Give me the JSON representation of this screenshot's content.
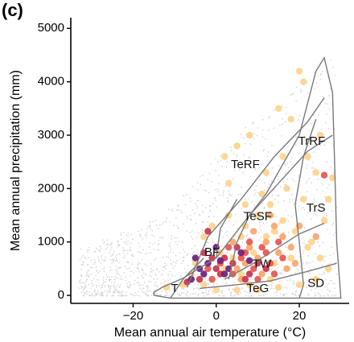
{
  "panel_label": "(c)",
  "chart_data": {
    "type": "scatter",
    "title": "",
    "xlabel": "Mean annual air temperature (°C)",
    "ylabel": "Mean annual precipitation (mm)",
    "xlim": [
      -35,
      32
    ],
    "ylim": [
      -150,
      5200
    ],
    "xticks": [
      -20,
      0,
      20
    ],
    "xtick_labels": [
      "−20",
      "0",
      "20"
    ],
    "yticks": [
      0,
      1000,
      2000,
      3000,
      4000,
      5000
    ],
    "ytick_labels": [
      "0",
      "1000",
      "2000",
      "3000",
      "4000",
      "5000"
    ],
    "grid": false,
    "background_color": "#d3d3d3",
    "biome_labels": [
      {
        "text": "TrRF",
        "x": 23,
        "y": 2880
      },
      {
        "text": "TeRF",
        "x": 7,
        "y": 2440
      },
      {
        "text": "TrS",
        "x": 24,
        "y": 1630
      },
      {
        "text": "TeSF",
        "x": 10,
        "y": 1470
      },
      {
        "text": "BF",
        "x": -1,
        "y": 800
      },
      {
        "text": "TW",
        "x": 11,
        "y": 580
      },
      {
        "text": "SD",
        "x": 24,
        "y": 220
      },
      {
        "text": "TeG",
        "x": 10,
        "y": 120
      },
      {
        "text": "T",
        "x": -10,
        "y": 120
      }
    ],
    "biome_boundaries": [
      {
        "name": "outer",
        "points": [
          [
            -15,
            0
          ],
          [
            -11,
            -50
          ],
          [
            0,
            -50
          ],
          [
            10,
            -50
          ],
          [
            20,
            -50
          ],
          [
            30,
            -50
          ],
          [
            29,
            1000
          ],
          [
            28.5,
            2500
          ],
          [
            28,
            3800
          ],
          [
            26,
            4450
          ],
          [
            24,
            4200
          ],
          [
            20,
            3000
          ],
          [
            12,
            1900
          ],
          [
            6,
            1300
          ],
          [
            0,
            700
          ],
          [
            -8,
            320
          ],
          [
            -13,
            150
          ],
          [
            -15,
            60
          ],
          [
            -15,
            0
          ]
        ]
      },
      {
        "name": "line1",
        "points": [
          [
            -7,
            150
          ],
          [
            -2,
            1100
          ],
          [
            6,
            1800
          ],
          [
            14,
            2600
          ],
          [
            22,
            3250
          ],
          [
            26,
            3700
          ]
        ]
      },
      {
        "name": "line2",
        "points": [
          [
            3,
            300
          ],
          [
            5,
            1000
          ],
          [
            8,
            1500
          ],
          [
            15,
            2100
          ],
          [
            22,
            2700
          ],
          [
            28,
            3000
          ]
        ]
      },
      {
        "name": "line3",
        "points": [
          [
            0,
            700
          ],
          [
            1,
            1250
          ],
          [
            5,
            1800
          ]
        ]
      },
      {
        "name": "line4",
        "points": [
          [
            2,
            300
          ],
          [
            9,
            600
          ],
          [
            15,
            900
          ],
          [
            20,
            1150
          ],
          [
            26,
            1350
          ]
        ]
      },
      {
        "name": "line5",
        "points": [
          [
            -4,
            130
          ],
          [
            5,
            200
          ],
          [
            13,
            270
          ],
          [
            22,
            450
          ],
          [
            29,
            600
          ]
        ]
      },
      {
        "name": "line6",
        "points": [
          [
            20,
            -50
          ],
          [
            21,
            200
          ],
          [
            20,
            1000
          ],
          [
            19,
            1700
          ],
          [
            21,
            2600
          ],
          [
            24,
            3300
          ]
        ]
      },
      {
        "name": "line7",
        "points": [
          [
            -11,
            -50
          ],
          [
            -8,
            300
          ],
          [
            -3,
            700
          ]
        ]
      }
    ],
    "series": [
      {
        "color": "#ffd28c",
        "values": [
          [
            2,
            2600
          ],
          [
            5,
            2800
          ],
          [
            8,
            3000
          ],
          [
            3,
            2100
          ],
          [
            12,
            2300
          ],
          [
            15,
            3500
          ],
          [
            20,
            4200
          ],
          [
            21,
            4000
          ],
          [
            18,
            3300
          ],
          [
            25,
            3000
          ],
          [
            16,
            2600
          ],
          [
            22,
            2600
          ],
          [
            -5,
            600
          ],
          [
            -12,
            150
          ],
          [
            -8,
            200
          ],
          [
            -3,
            1100
          ],
          [
            0,
            900
          ],
          [
            4,
            700
          ],
          [
            7,
            1300
          ],
          [
            10,
            1500
          ],
          [
            13,
            1700
          ],
          [
            16,
            1400
          ],
          [
            19,
            1200
          ],
          [
            22,
            900
          ],
          [
            25,
            700
          ],
          [
            27,
            500
          ],
          [
            24,
            300
          ],
          [
            20,
            200
          ],
          [
            15,
            150
          ],
          [
            10,
            100
          ],
          [
            5,
            100
          ],
          [
            0,
            100
          ],
          [
            -3,
            200
          ],
          [
            6,
            400
          ],
          [
            9,
            800
          ],
          [
            12,
            1100
          ],
          [
            14,
            600
          ],
          [
            18,
            700
          ],
          [
            23,
            1000
          ],
          [
            26,
            1400
          ],
          [
            21,
            1800
          ],
          [
            17,
            2000
          ],
          [
            11,
            1900
          ],
          [
            7,
            1700
          ],
          [
            3,
            1500
          ],
          [
            -1,
            1300
          ],
          [
            2,
            500
          ],
          [
            -6,
            400
          ],
          [
            8,
            200
          ],
          [
            13,
            300
          ],
          [
            28,
            2200
          ],
          [
            27,
            1800
          ],
          [
            24,
            2300
          ],
          [
            14,
            1200
          ],
          [
            6,
            1100
          ],
          [
            1,
            800
          ]
        ]
      },
      {
        "color": "#f7a56a",
        "values": [
          [
            5,
            500
          ],
          [
            8,
            900
          ],
          [
            10,
            700
          ],
          [
            12,
            1000
          ],
          [
            14,
            1300
          ],
          [
            16,
            1100
          ],
          [
            18,
            900
          ],
          [
            11,
            400
          ],
          [
            7,
            600
          ],
          [
            15,
            800
          ],
          [
            20,
            1300
          ],
          [
            13,
            1500
          ],
          [
            9,
            1200
          ],
          [
            4,
            1000
          ],
          [
            17,
            500
          ],
          [
            6,
            300
          ],
          [
            19,
            600
          ],
          [
            24,
            1100
          ]
        ]
      },
      {
        "color": "#e8554e",
        "values": [
          [
            -2,
            500
          ],
          [
            1,
            600
          ],
          [
            4,
            400
          ],
          [
            7,
            800
          ],
          [
            9,
            500
          ],
          [
            11,
            900
          ],
          [
            13,
            600
          ],
          [
            15,
            1000
          ],
          [
            6,
            700
          ],
          [
            3,
            900
          ],
          [
            10,
            300
          ],
          [
            -1,
            300
          ],
          [
            16,
            700
          ],
          [
            8,
            1000
          ],
          [
            12,
            800
          ],
          [
            14,
            400
          ],
          [
            26,
            2250
          ]
        ]
      },
      {
        "color": "#c9324e",
        "values": [
          [
            -3,
            800
          ],
          [
            0,
            500
          ],
          [
            2,
            700
          ],
          [
            5,
            900
          ],
          [
            8,
            400
          ],
          [
            -1,
            700
          ],
          [
            4,
            600
          ],
          [
            7,
            300
          ],
          [
            10,
            600
          ],
          [
            -4,
            300
          ],
          [
            1,
            400
          ],
          [
            12,
            500
          ],
          [
            -7,
            250
          ],
          [
            -2,
            1200
          ]
        ]
      },
      {
        "color": "#6b1f7a",
        "values": [
          [
            -5,
            700
          ],
          [
            -2,
            600
          ],
          [
            0,
            900
          ],
          [
            3,
            500
          ],
          [
            6,
            800
          ],
          [
            -4,
            500
          ],
          [
            2,
            400
          ],
          [
            -3,
            400
          ],
          [
            8,
            650
          ],
          [
            -6,
            300
          ],
          [
            1,
            650
          ]
        ]
      }
    ]
  }
}
